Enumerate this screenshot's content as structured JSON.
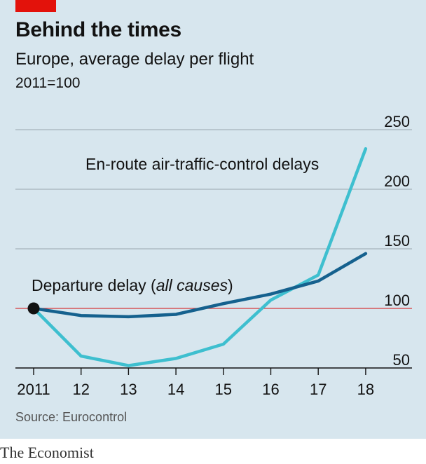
{
  "header": {
    "title": "Behind the times",
    "subtitle": "Europe, average delay per flight",
    "index_note": "2011=100"
  },
  "source": "Source: Eurocontrol",
  "brand": "The Economist",
  "colors": {
    "background": "#d7e6ee",
    "brand_red": "#e3120b",
    "departure_series": "#15618e",
    "enroute_series": "#3ebfcf",
    "baseline": "#d53b3b",
    "grid": "#9aa7ae"
  },
  "chart_data": {
    "type": "line",
    "title": "Behind the times",
    "subtitle": "Europe, average delay per flight",
    "x": [
      2011,
      2012,
      2013,
      2014,
      2015,
      2016,
      2017,
      2018
    ],
    "x_tick_labels": [
      "2011",
      "12",
      "13",
      "14",
      "15",
      "16",
      "17",
      "18"
    ],
    "y_ticks": [
      50,
      100,
      150,
      200,
      250
    ],
    "ylim": [
      50,
      250
    ],
    "baseline": 100,
    "grid": true,
    "series": [
      {
        "name": "Departure delay (all causes)",
        "label_prefix": "Departure delay (",
        "label_italic": "all causes",
        "label_suffix": ")",
        "values": [
          100,
          94,
          93,
          95,
          104,
          112,
          123,
          146
        ]
      },
      {
        "name": "En-route air-traffic-control delays",
        "values": [
          100,
          60,
          52,
          58,
          70,
          107,
          128,
          234
        ]
      }
    ]
  }
}
